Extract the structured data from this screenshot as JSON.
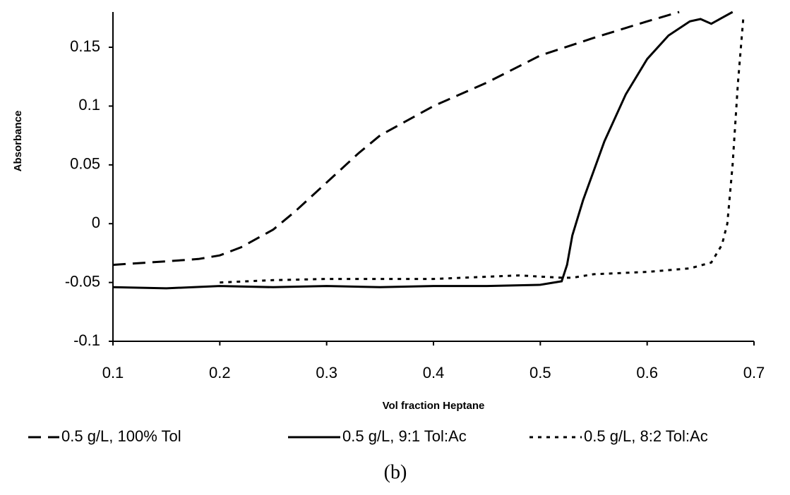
{
  "chart_data": {
    "type": "line",
    "x_label": "Vol fraction Heptane",
    "y_label": "Absorbance",
    "caption": "(b)",
    "xlim": [
      0.1,
      0.7
    ],
    "xticks": [
      0.1,
      0.2,
      0.3,
      0.4,
      0.5,
      0.6,
      0.7
    ],
    "ylim": [
      -0.1,
      0.18
    ],
    "yticks": [
      -0.1,
      -0.05,
      0,
      0.05,
      0.1,
      0.15
    ],
    "grid": false,
    "legend": "bottom",
    "series": [
      {
        "name": "0.5 g/L, 100% Tol",
        "color": "#000000",
        "style": "dashed",
        "x": [
          0.1,
          0.15,
          0.18,
          0.2,
          0.22,
          0.25,
          0.27,
          0.3,
          0.33,
          0.35,
          0.37,
          0.4,
          0.45,
          0.5,
          0.55,
          0.6,
          0.63
        ],
        "values": [
          -0.035,
          -0.032,
          -0.03,
          -0.027,
          -0.02,
          -0.005,
          0.01,
          0.035,
          0.06,
          0.075,
          0.085,
          0.1,
          0.12,
          0.143,
          0.158,
          0.172,
          0.18
        ]
      },
      {
        "name": "0.5 g/L, 9:1 Tol:Ac",
        "color": "#000000",
        "style": "solid",
        "x": [
          0.1,
          0.15,
          0.2,
          0.25,
          0.3,
          0.35,
          0.4,
          0.45,
          0.5,
          0.52,
          0.525,
          0.53,
          0.54,
          0.55,
          0.56,
          0.58,
          0.6,
          0.62,
          0.64,
          0.65,
          0.66,
          0.67,
          0.68
        ],
        "values": [
          -0.054,
          -0.055,
          -0.053,
          -0.054,
          -0.053,
          -0.054,
          -0.053,
          -0.053,
          -0.052,
          -0.049,
          -0.035,
          -0.01,
          0.02,
          0.045,
          0.07,
          0.11,
          0.14,
          0.16,
          0.172,
          0.174,
          0.17,
          0.175,
          0.18
        ]
      },
      {
        "name": "0.5 g/L, 8:2 Tol:Ac",
        "color": "#000000",
        "style": "dotted",
        "x": [
          0.2,
          0.25,
          0.3,
          0.4,
          0.48,
          0.52,
          0.53,
          0.55,
          0.6,
          0.64,
          0.66,
          0.67,
          0.675,
          0.68,
          0.685,
          0.69
        ],
        "values": [
          -0.05,
          -0.048,
          -0.047,
          -0.047,
          -0.044,
          -0.046,
          -0.046,
          -0.043,
          -0.041,
          -0.038,
          -0.033,
          -0.018,
          0.0,
          0.05,
          0.12,
          0.175
        ]
      }
    ]
  }
}
